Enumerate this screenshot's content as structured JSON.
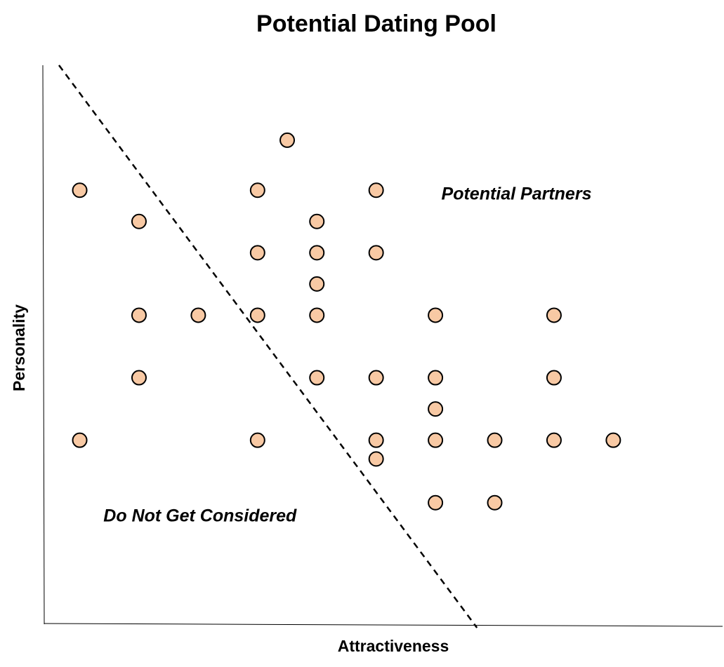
{
  "chart_data": {
    "type": "scatter",
    "title": "Potential Dating Pool",
    "xlabel": "Attractiveness",
    "ylabel": "Personality",
    "xlim": [
      0,
      11.3
    ],
    "ylim": [
      0,
      9
    ],
    "grid": false,
    "legend": "none",
    "ticks": "none",
    "point_fill": "#f8c9a4",
    "point_stroke": "#000000",
    "divider": {
      "style": "dashed",
      "from": [
        0.45,
        9
      ],
      "to": [
        7.5,
        0
      ]
    },
    "points": [
      {
        "x": 4.3,
        "y": 7.8
      },
      {
        "x": 0.8,
        "y": 7.0
      },
      {
        "x": 3.8,
        "y": 7.0
      },
      {
        "x": 5.8,
        "y": 7.0
      },
      {
        "x": 1.8,
        "y": 6.5
      },
      {
        "x": 4.8,
        "y": 6.5
      },
      {
        "x": 3.8,
        "y": 6.0
      },
      {
        "x": 4.8,
        "y": 6.0
      },
      {
        "x": 5.8,
        "y": 6.0
      },
      {
        "x": 4.8,
        "y": 5.5
      },
      {
        "x": 1.8,
        "y": 5.0
      },
      {
        "x": 2.8,
        "y": 5.0
      },
      {
        "x": 3.8,
        "y": 5.0
      },
      {
        "x": 4.8,
        "y": 5.0
      },
      {
        "x": 6.8,
        "y": 5.0
      },
      {
        "x": 8.8,
        "y": 5.0
      },
      {
        "x": 1.8,
        "y": 4.0
      },
      {
        "x": 4.8,
        "y": 4.0
      },
      {
        "x": 5.8,
        "y": 4.0
      },
      {
        "x": 6.8,
        "y": 4.0
      },
      {
        "x": 8.8,
        "y": 4.0
      },
      {
        "x": 6.8,
        "y": 3.5
      },
      {
        "x": 0.8,
        "y": 3.0
      },
      {
        "x": 3.8,
        "y": 3.0
      },
      {
        "x": 5.8,
        "y": 3.0
      },
      {
        "x": 6.8,
        "y": 3.0
      },
      {
        "x": 7.8,
        "y": 3.0
      },
      {
        "x": 8.8,
        "y": 3.0
      },
      {
        "x": 9.8,
        "y": 3.0
      },
      {
        "x": 5.8,
        "y": 2.7
      },
      {
        "x": 6.8,
        "y": 2.0
      },
      {
        "x": 7.8,
        "y": 2.0
      }
    ],
    "annotations": [
      {
        "id": "potential-partners",
        "text": "Potential Partners",
        "x": 6.9,
        "y": 6.85
      },
      {
        "id": "not-considered",
        "text": "Do Not Get Considered",
        "x": 1.2,
        "y": 1.7
      }
    ]
  }
}
